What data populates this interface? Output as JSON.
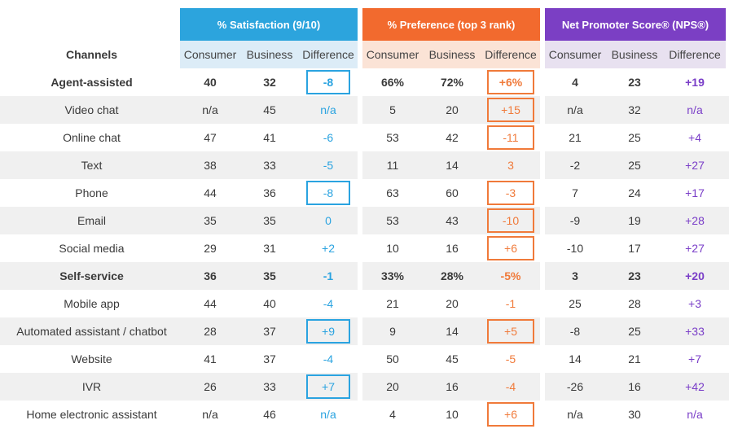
{
  "headers": {
    "channels": "Channels",
    "groups": [
      {
        "title": "% Satisfaction (9/10)",
        "color": "#2ca4dd",
        "sub": [
          "Consumer",
          "Business",
          "Difference"
        ]
      },
      {
        "title": "% Preference (top 3 rank)",
        "color": "#f26a2e",
        "sub": [
          "Consumer",
          "Business",
          "Difference"
        ]
      },
      {
        "title": "Net Promoter Score® (NPS®)",
        "color": "#7b3fc4",
        "sub": [
          "Consumer",
          "Business",
          "Difference"
        ]
      }
    ]
  },
  "rows": [
    {
      "label": "Agent-assisted",
      "bold": true,
      "sat": [
        "40",
        "32",
        "-8"
      ],
      "pref": [
        "66%",
        "72%",
        "+6%"
      ],
      "nps": [
        "4",
        "23",
        "+19"
      ],
      "box_sat": true,
      "box_pref": true
    },
    {
      "label": "Video chat",
      "bold": false,
      "sat": [
        "n/a",
        "45",
        "n/a"
      ],
      "pref": [
        "5",
        "20",
        "+15"
      ],
      "nps": [
        "n/a",
        "32",
        "n/a"
      ],
      "box_sat": false,
      "box_pref": true
    },
    {
      "label": "Online chat",
      "bold": false,
      "sat": [
        "47",
        "41",
        "-6"
      ],
      "pref": [
        "53",
        "42",
        "-11"
      ],
      "nps": [
        "21",
        "25",
        "+4"
      ],
      "box_sat": false,
      "box_pref": true
    },
    {
      "label": "Text",
      "bold": false,
      "sat": [
        "38",
        "33",
        "-5"
      ],
      "pref": [
        "11",
        "14",
        "3"
      ],
      "nps": [
        "-2",
        "25",
        "+27"
      ],
      "box_sat": false,
      "box_pref": false
    },
    {
      "label": "Phone",
      "bold": false,
      "sat": [
        "44",
        "36",
        "-8"
      ],
      "pref": [
        "63",
        "60",
        "-3"
      ],
      "nps": [
        "7",
        "24",
        "+17"
      ],
      "box_sat": true,
      "box_pref": true
    },
    {
      "label": "Email",
      "bold": false,
      "sat": [
        "35",
        "35",
        "0"
      ],
      "pref": [
        "53",
        "43",
        "-10"
      ],
      "nps": [
        "-9",
        "19",
        "+28"
      ],
      "box_sat": false,
      "box_pref": true
    },
    {
      "label": "Social media",
      "bold": false,
      "sat": [
        "29",
        "31",
        "+2"
      ],
      "pref": [
        "10",
        "16",
        "+6"
      ],
      "nps": [
        "-10",
        "17",
        "+27"
      ],
      "box_sat": false,
      "box_pref": true
    },
    {
      "label": "Self-service",
      "bold": true,
      "sat": [
        "36",
        "35",
        "-1"
      ],
      "pref": [
        "33%",
        "28%",
        "-5%"
      ],
      "nps": [
        "3",
        "23",
        "+20"
      ],
      "box_sat": false,
      "box_pref": false
    },
    {
      "label": "Mobile app",
      "bold": false,
      "sat": [
        "44",
        "40",
        "-4"
      ],
      "pref": [
        "21",
        "20",
        "-1"
      ],
      "nps": [
        "25",
        "28",
        "+3"
      ],
      "box_sat": false,
      "box_pref": false
    },
    {
      "label": "Automated assistant / chatbot",
      "bold": false,
      "sat": [
        "28",
        "37",
        "+9"
      ],
      "pref": [
        "9",
        "14",
        "+5"
      ],
      "nps": [
        "-8",
        "25",
        "+33"
      ],
      "box_sat": true,
      "box_pref": true
    },
    {
      "label": "Website",
      "bold": false,
      "sat": [
        "41",
        "37",
        "-4"
      ],
      "pref": [
        "50",
        "45",
        "-5"
      ],
      "nps": [
        "14",
        "21",
        "+7"
      ],
      "box_sat": false,
      "box_pref": false
    },
    {
      "label": "IVR",
      "bold": false,
      "sat": [
        "26",
        "33",
        "+7"
      ],
      "pref": [
        "20",
        "16",
        "-4"
      ],
      "nps": [
        "-26",
        "16",
        "+42"
      ],
      "box_sat": true,
      "box_pref": false
    },
    {
      "label": "Home electronic assistant",
      "bold": false,
      "sat": [
        "n/a",
        "46",
        "n/a"
      ],
      "pref": [
        "4",
        "10",
        "+6"
      ],
      "nps": [
        "n/a",
        "30",
        "n/a"
      ],
      "box_sat": false,
      "box_pref": true
    }
  ],
  "colors": {
    "sat_diff": "#2aa3e0",
    "pref_diff": "#f07a3a",
    "nps_diff": "#7a3ec8",
    "shade": "#f0f0f0"
  }
}
